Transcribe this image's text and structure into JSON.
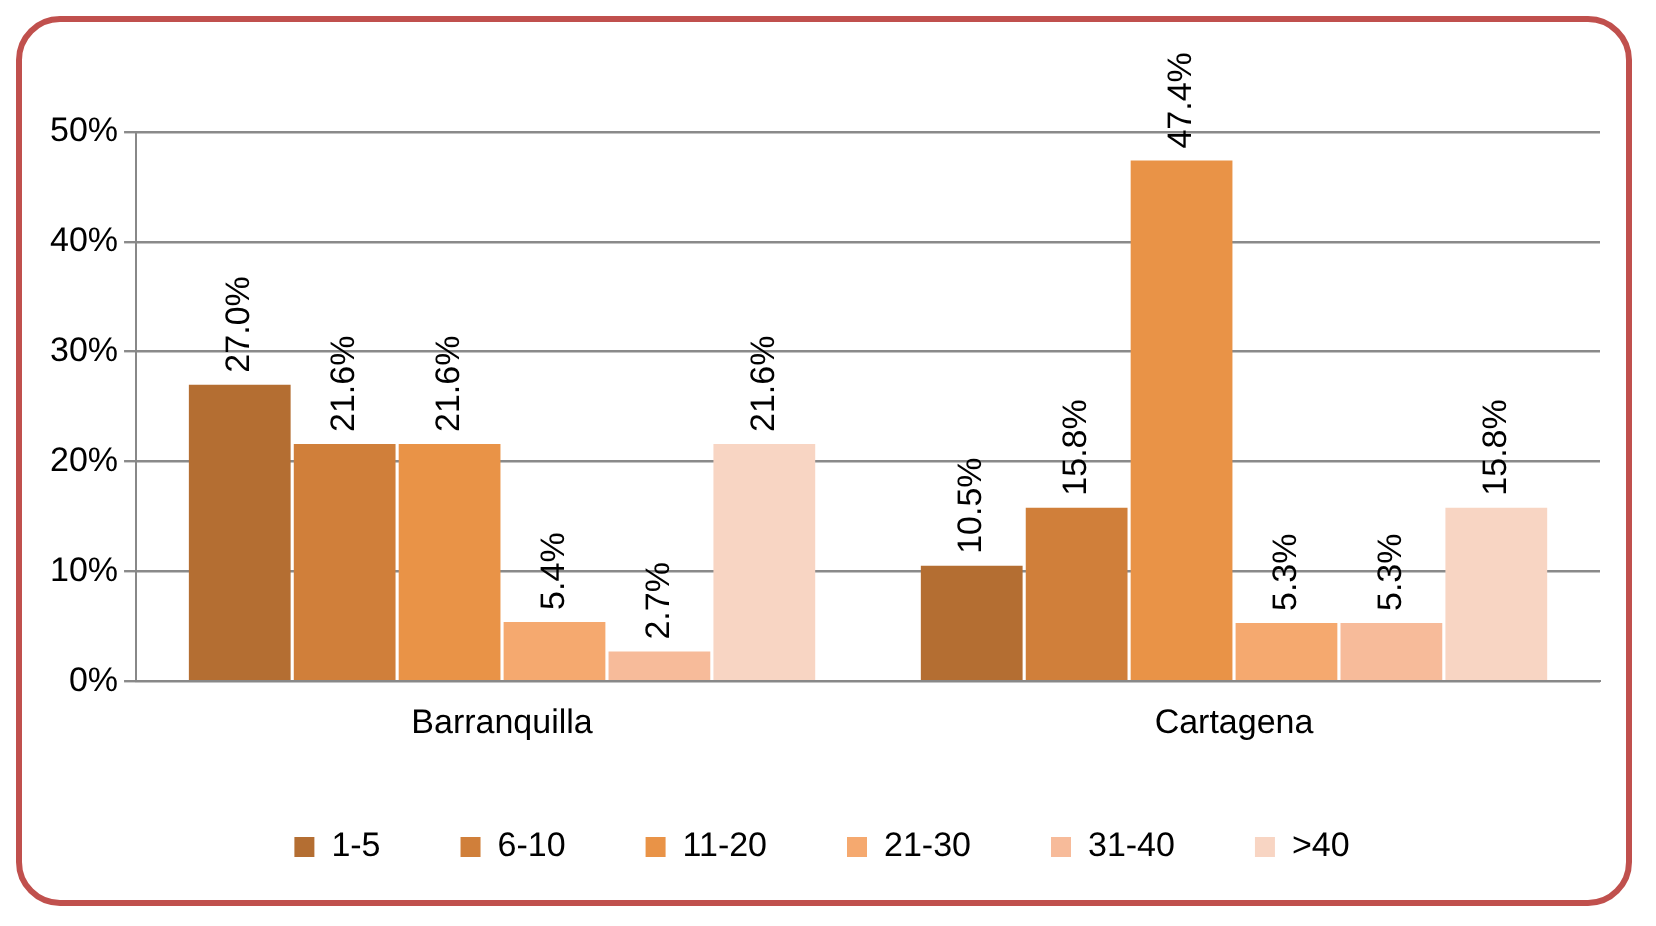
{
  "chart_data": {
    "type": "bar",
    "categories": [
      "Barranquilla",
      "Cartagena"
    ],
    "series": [
      {
        "name": "1-5",
        "color": "#b46e32",
        "values": [
          27.0,
          10.5
        ],
        "value_labels": [
          "27.0%",
          "10.5%"
        ]
      },
      {
        "name": "6-10",
        "color": "#d07f3a",
        "values": [
          21.6,
          15.8
        ],
        "value_labels": [
          "21.6%",
          "15.8%"
        ]
      },
      {
        "name": "11-20",
        "color": "#e99347",
        "values": [
          21.6,
          47.4
        ],
        "value_labels": [
          "21.6%",
          "47.4%"
        ]
      },
      {
        "name": "21-30",
        "color": "#f5a96f",
        "values": [
          5.4,
          5.3
        ],
        "value_labels": [
          "5.4%",
          "5.3%"
        ]
      },
      {
        "name": "31-40",
        "color": "#f7bb9a",
        "values": [
          2.7,
          5.3
        ],
        "value_labels": [
          "2.7%",
          "5.3%"
        ]
      },
      {
        "name": ">40",
        "color": "#f8d5c3",
        "values": [
          21.6,
          15.8
        ],
        "value_labels": [
          "21.6%",
          "15.8%"
        ]
      }
    ],
    "ylim": [
      0,
      50
    ],
    "yticks": [
      {
        "value": 0,
        "label": "0%"
      },
      {
        "value": 10,
        "label": "10%"
      },
      {
        "value": 20,
        "label": "20%"
      },
      {
        "value": 30,
        "label": "30%"
      },
      {
        "value": 40,
        "label": "40%"
      },
      {
        "value": 50,
        "label": "50%"
      }
    ],
    "grid": "y",
    "legend": "bottom"
  }
}
